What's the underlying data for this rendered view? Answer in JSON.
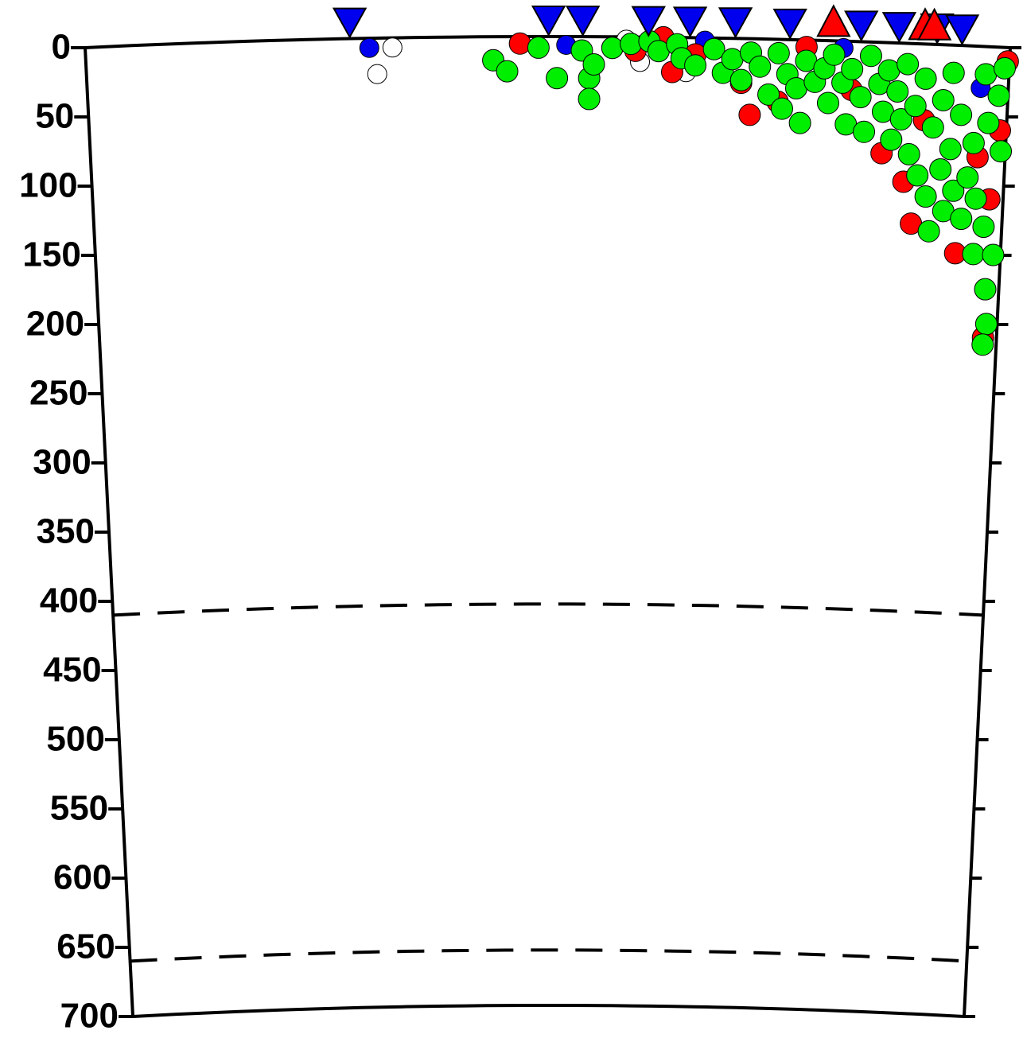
{
  "chart_data": {
    "type": "scatter",
    "xlim": [
      0,
      100
    ],
    "ylim": [
      0,
      700
    ],
    "yticks": [
      0,
      50,
      100,
      150,
      200,
      250,
      300,
      350,
      400,
      450,
      500,
      550,
      600,
      650,
      700
    ],
    "reference_depths": [
      410,
      660
    ],
    "series": [
      {
        "color": "#ffffff",
        "marker": "circle",
        "x": [
          33.2,
          31.5,
          58.5,
          65,
          60
        ],
        "values": [
          7,
          26,
          2,
          25,
          18
        ]
      },
      {
        "color": "#0000ee",
        "marker": "circle",
        "x": [
          30.7,
          52,
          67,
          82,
          97
        ],
        "values": [
          7,
          6,
          2,
          5,
          30
        ]
      },
      {
        "color": "#ff0000",
        "marker": "circle",
        "x": [
          47,
          59.5,
          62.5,
          63.5,
          66,
          71,
          72,
          75,
          78,
          83,
          86.5,
          89,
          90,
          91,
          95,
          97,
          98.5,
          98.5,
          99.3,
          99.8
        ],
        "values": [
          5,
          10,
          0,
          25,
          12,
          32,
          55,
          45,
          5,
          35,
          80,
          100,
          130,
          55,
          150,
          80,
          110,
          210,
          60,
          10
        ]
      },
      {
        "color": "#00ee00",
        "marker": "circle",
        "x": [
          44.1,
          45.6,
          49,
          51,
          53.7,
          54.5,
          54.5,
          55,
          57,
          59,
          61,
          62,
          64,
          64.5,
          66,
          68,
          69,
          70,
          71,
          72,
          73,
          74,
          75,
          75.5,
          76,
          77,
          77.5,
          78,
          79,
          80,
          80.5,
          81,
          82,
          82.5,
          83,
          84,
          84.5,
          85,
          86,
          86.5,
          87,
          87.5,
          88,
          88.5,
          89,
          89.5,
          90,
          90.5,
          91,
          91.5,
          92,
          92,
          93,
          93,
          93.5,
          94,
          94,
          94.5,
          95,
          95.5,
          96,
          96.5,
          97,
          97,
          97.5,
          98,
          98,
          98.5,
          98.8,
          98.5,
          99,
          99.5,
          99.5,
          99.2
        ],
        "values": [
          17,
          25,
          8,
          30,
          10,
          30,
          45,
          20,
          8,
          5,
          3,
          10,
          5,
          15,
          20,
          8,
          25,
          15,
          30,
          10,
          20,
          40,
          10,
          50,
          25,
          35,
          60,
          15,
          30,
          20,
          45,
          10,
          30,
          60,
          20,
          40,
          65,
          10,
          30,
          50,
          20,
          70,
          35,
          55,
          15,
          80,
          45,
          95,
          25,
          110,
          60,
          135,
          40,
          90,
          120,
          20,
          75,
          105,
          50,
          125,
          95,
          70,
          110,
          150,
          20,
          55,
          130,
          175,
          200,
          215,
          35,
          15,
          75,
          150
        ]
      },
      {
        "color": "#0000ee",
        "marker": "triangle-down",
        "x": [
          28.6,
          50.1,
          53.8,
          60.9,
          65.4,
          70.3,
          76.2,
          83.9,
          88,
          92.1,
          94.8
        ]
      },
      {
        "color": "#ff0000",
        "marker": "triangle-up",
        "x": [
          80.9,
          90.8,
          91.8
        ]
      }
    ]
  }
}
